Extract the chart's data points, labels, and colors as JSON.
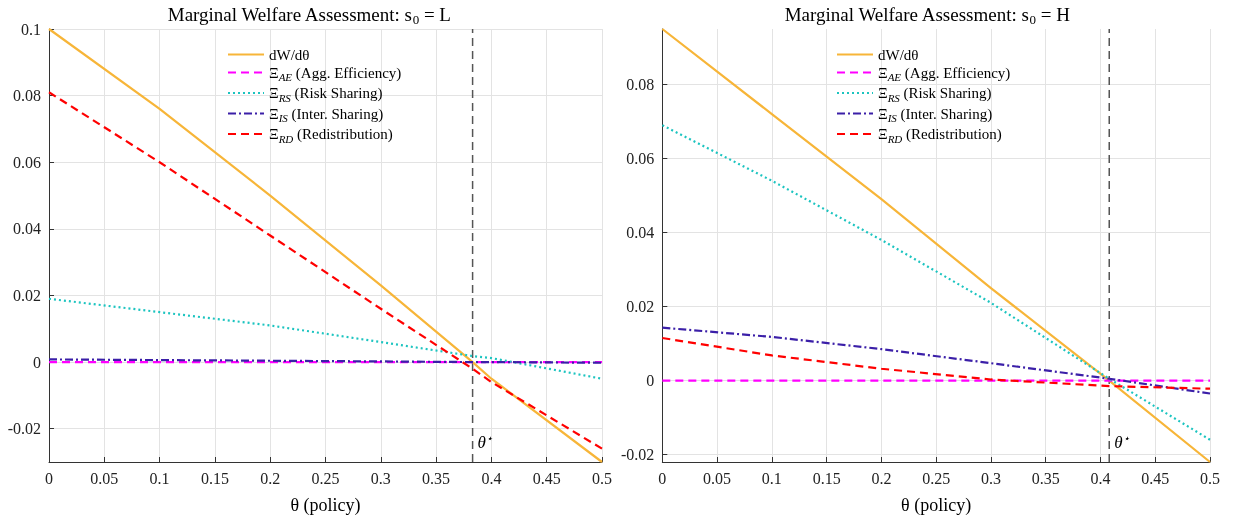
{
  "chart_data": [
    {
      "type": "line",
      "title": "Marginal Welfare Assessment: s$_{0}$ = L",
      "xlabel": "θ (policy)",
      "x": [
        0,
        0.1,
        0.2,
        0.3,
        0.383,
        0.4,
        0.5
      ],
      "series": [
        {
          "name": "dW/dθ",
          "color": "#f7b538",
          "line_style": "solid",
          "values": [
            0.1,
            0.076,
            0.05,
            0.023,
            0,
            -0.005,
            -0.03
          ]
        },
        {
          "name": "Ξ$_{AE}$ (Agg. Efficiency)",
          "color": "#ff00ff",
          "line_style": "dashed",
          "values": [
            0,
            0,
            0,
            0,
            0,
            0,
            0
          ]
        },
        {
          "name": "Ξ$_{RS}$ (Risk Sharing)",
          "color": "#1cc4c0",
          "line_style": "dotted",
          "values": [
            0.019,
            0.015,
            0.011,
            0.006,
            0.0018,
            0.0012,
            -0.005
          ]
        },
        {
          "name": "Ξ$_{IS}$ (Inter. Sharing)",
          "color": "#3b1fa8",
          "line_style": "dashdot",
          "values": [
            0.0008,
            0.0006,
            0.0004,
            0.0002,
            0,
            0,
            -0.0002
          ]
        },
        {
          "name": "Ξ$_{RD}$ (Redistribution)",
          "color": "#ff0000",
          "line_style": "dashed",
          "values": [
            0.081,
            0.06,
            0.038,
            0.016,
            -0.002,
            -0.006,
            -0.026
          ]
        }
      ],
      "xlim": [
        0,
        0.5
      ],
      "xticks": [
        0,
        0.05,
        0.1,
        0.15,
        0.2,
        0.25,
        0.3,
        0.35,
        0.4,
        0.45,
        0.5
      ],
      "ylim": [
        -0.03,
        0.1
      ],
      "yticks": [
        -0.02,
        0,
        0.02,
        0.04,
        0.06,
        0.08,
        0.1
      ],
      "ref_lines": [
        {
          "axis": "x",
          "value": 0.383,
          "label": "θ$^{⋆}$",
          "color": "#555555",
          "line_style": "dashed"
        }
      ],
      "grid": true,
      "legend": "top",
      "marker": "none"
    },
    {
      "type": "line",
      "title": "Marginal Welfare Assessment: s$_{0}$ = H",
      "xlabel": "θ (policy)",
      "x": [
        0,
        0.1,
        0.2,
        0.3,
        0.408,
        0.5
      ],
      "series": [
        {
          "name": "dW/dθ",
          "color": "#f7b538",
          "line_style": "solid",
          "values": [
            0.095,
            0.072,
            0.049,
            0.025,
            0,
            -0.022
          ]
        },
        {
          "name": "Ξ$_{AE}$ (Agg. Efficiency)",
          "color": "#ff00ff",
          "line_style": "dashed",
          "values": [
            0,
            0,
            0,
            0,
            0,
            0
          ]
        },
        {
          "name": "Ξ$_{RS}$ (Risk Sharing)",
          "color": "#1cc4c0",
          "line_style": "dotted",
          "values": [
            0.069,
            0.054,
            0.038,
            0.021,
            0.0005,
            -0.016
          ]
        },
        {
          "name": "Ξ$_{IS}$ (Inter. Sharing)",
          "color": "#3b1fa8",
          "line_style": "dashdot",
          "values": [
            0.0143,
            0.0118,
            0.0085,
            0.0047,
            0.0005,
            -0.0035
          ]
        },
        {
          "name": "Ξ$_{RD}$ (Redistribution)",
          "color": "#ff0000",
          "line_style": "dashed",
          "values": [
            0.0115,
            0.0068,
            0.0032,
            0.0003,
            -0.0015,
            -0.0022
          ]
        }
      ],
      "xlim": [
        0,
        0.5
      ],
      "xticks": [
        0,
        0.05,
        0.1,
        0.15,
        0.2,
        0.25,
        0.3,
        0.35,
        0.4,
        0.45,
        0.5
      ],
      "ylim": [
        -0.022,
        0.095
      ],
      "yticks": [
        -0.02,
        0,
        0.02,
        0.04,
        0.06,
        0.08
      ],
      "ref_lines": [
        {
          "axis": "x",
          "value": 0.408,
          "label": "θ$^{⋆}$",
          "color": "#555555",
          "line_style": "dashed"
        }
      ],
      "grid": true,
      "legend": "top",
      "marker": "none"
    }
  ]
}
